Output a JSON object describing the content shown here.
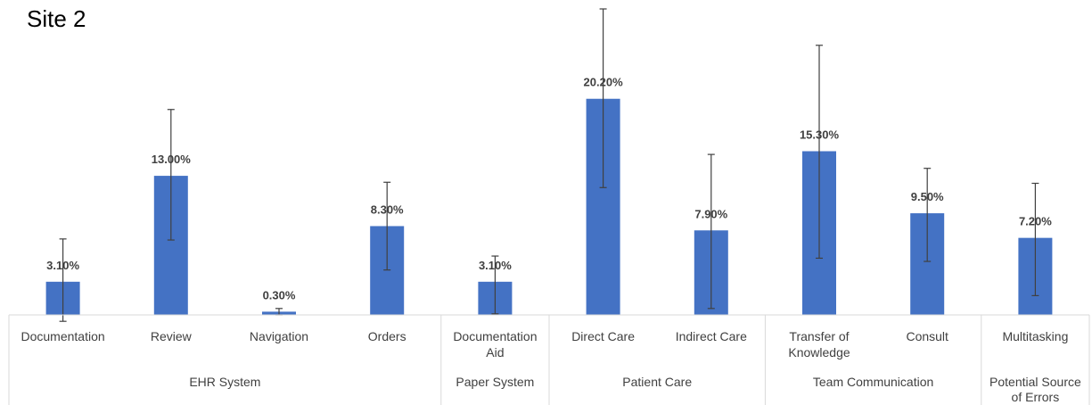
{
  "title": "Site 2",
  "chart_data": {
    "type": "bar",
    "title": "Site 2",
    "categories": [
      {
        "label": [
          "Documentation"
        ],
        "group": "EHR System"
      },
      {
        "label": [
          "Review"
        ],
        "group": "EHR System"
      },
      {
        "label": [
          "Navigation"
        ],
        "group": "EHR System"
      },
      {
        "label": [
          "Orders"
        ],
        "group": "EHR System"
      },
      {
        "label": [
          "Documentation",
          "Aid"
        ],
        "group": "Paper System"
      },
      {
        "label": [
          "Direct Care"
        ],
        "group": "Patient Care"
      },
      {
        "label": [
          "Indirect Care"
        ],
        "group": "Patient Care"
      },
      {
        "label": [
          "Transfer of",
          "Knowledge"
        ],
        "group": "Team Communication"
      },
      {
        "label": [
          "Consult"
        ],
        "group": "Team Communication"
      },
      {
        "label": [
          "Multitasking"
        ],
        "group": "Potential Source of Errors"
      }
    ],
    "groups": [
      {
        "name": [
          "EHR System"
        ],
        "count": 4
      },
      {
        "name": [
          "Paper System"
        ],
        "count": 1
      },
      {
        "name": [
          "Patient Care"
        ],
        "count": 2
      },
      {
        "name": [
          "Team Communication"
        ],
        "count": 2
      },
      {
        "name": [
          "Potential Source",
          "of Errors"
        ],
        "count": 1
      }
    ],
    "values": [
      3.1,
      13.0,
      0.3,
      8.3,
      3.1,
      20.2,
      7.9,
      15.3,
      9.5,
      7.2
    ],
    "value_labels": [
      "3.10%",
      "13.00%",
      "0.30%",
      "8.30%",
      "3.10%",
      "20.20%",
      "7.90%",
      "15.30%",
      "9.50%",
      "7.20%"
    ],
    "error_low": [
      -0.6,
      7.0,
      0.0,
      4.2,
      0.1,
      11.9,
      0.6,
      5.3,
      5.0,
      1.8
    ],
    "error_high": [
      7.1,
      19.2,
      0.6,
      12.4,
      5.5,
      28.6,
      15.0,
      25.2,
      13.7,
      12.3
    ],
    "ylim": [
      0,
      28.6
    ],
    "grid": false,
    "bar_color": "#4472C4",
    "error_color": "#404040"
  }
}
